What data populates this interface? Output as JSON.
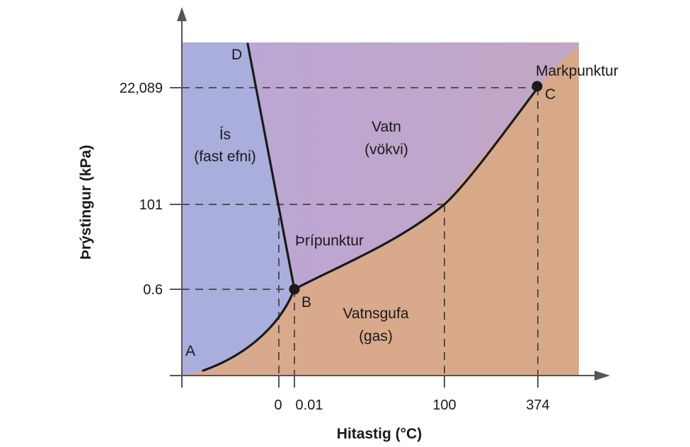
{
  "regions": {
    "solid": {
      "line1": "Ís",
      "line2": "(fast efni)",
      "color": "#a9aedc"
    },
    "liquid": {
      "line1": "Vatn",
      "line2": "(vökvi)",
      "color": "#bea7cc"
    },
    "gas": {
      "line1": "Vatnsgufa",
      "line2": "(gas)",
      "color": "#d9a98b"
    }
  },
  "points": {
    "A": "A",
    "B": "B",
    "C": "C",
    "D": "D",
    "triple_point": "Þrípunktur",
    "critical_point": "Markpunktur"
  },
  "axes": {
    "x_title": "Hitastig (°C)",
    "y_title": "Þrýstingur (kPa)",
    "x_ticks": [
      "0",
      "0.01",
      "100",
      "374"
    ],
    "y_ticks": [
      "22,089",
      "101",
      "0.6"
    ]
  },
  "colors": {
    "lines": "#1a1a1a",
    "axis": "#555555"
  }
}
